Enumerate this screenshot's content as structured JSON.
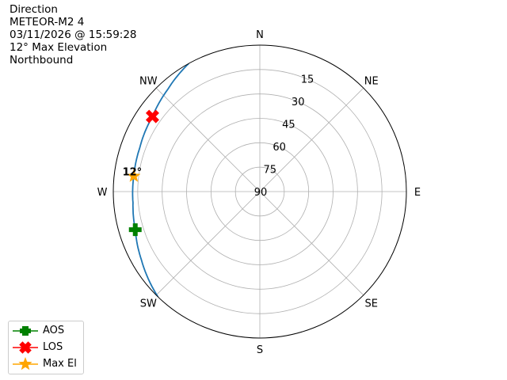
{
  "header": {
    "lines": [
      "Direction",
      "METEOR-M2 4",
      "03/11/2026 @ 15:59:28",
      "12° Max Elevation",
      "Northbound"
    ]
  },
  "chart_data": {
    "type": "polar",
    "title": "",
    "angle_direction": "clockwise",
    "zero_location": "N",
    "radial_axis": "elevation (deg), 90 at center, 0 at edge",
    "rlim": [
      90,
      0
    ],
    "grid": true,
    "direction_labels": [
      "N",
      "NE",
      "E",
      "SE",
      "S",
      "SW",
      "W",
      "NW"
    ],
    "radial_tick_labels": [
      "15",
      "30",
      "45",
      "60",
      "75",
      "90"
    ],
    "series": [
      {
        "type": "line",
        "color": "#1f77b4",
        "points": [
          {
            "az": 224,
            "el": 0
          },
          {
            "az": 240,
            "el": 6
          },
          {
            "az": 253,
            "el": 10
          },
          {
            "az": 265,
            "el": 11.8
          },
          {
            "az": 277,
            "el": 12
          },
          {
            "az": 290,
            "el": 11.5
          },
          {
            "az": 305,
            "el": 9.5
          },
          {
            "az": 318,
            "el": 5.5
          },
          {
            "az": 331,
            "el": 0
          }
        ]
      }
    ],
    "markers": [
      {
        "name": "AOS",
        "az": 253,
        "el": 10,
        "color": "#008000",
        "marker": "plus-filled"
      },
      {
        "name": "LOS",
        "az": 305,
        "el": 9.5,
        "color": "#ff0000",
        "marker": "x-filled"
      },
      {
        "name": "Max El",
        "az": 277,
        "el": 12,
        "color": "#ffa500",
        "marker": "star"
      }
    ],
    "annotations": [
      {
        "text": "12°",
        "az": 277,
        "el": 12
      }
    ],
    "legend": {
      "placement": "bottom-left",
      "entries": [
        "AOS",
        "LOS",
        "Max El"
      ]
    }
  }
}
